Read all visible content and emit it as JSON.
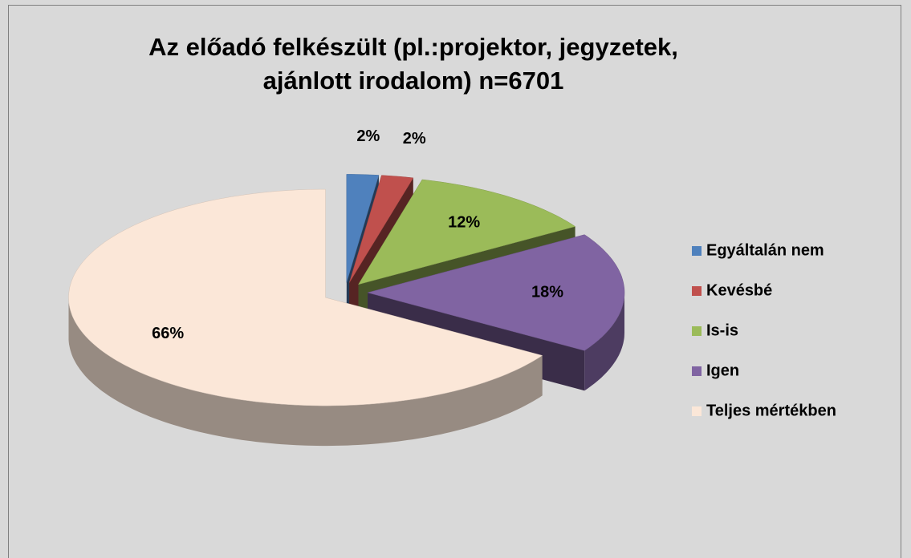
{
  "chart_data": {
    "type": "pie",
    "title": "Az előadó felkészült (pl.:projektor, jegyzetek, ajánlott irodalom) n=6701",
    "categories": [
      "Egyáltalán nem",
      "Kevésbé",
      "Is-is",
      "Igen",
      "Teljes mértékben"
    ],
    "values": [
      2,
      2,
      12,
      18,
      66
    ],
    "value_labels": [
      "2%",
      "2%",
      "12%",
      "18%",
      "66%"
    ],
    "colors": [
      "#4f81bd",
      "#c0504d",
      "#9bbb59",
      "#8064a2",
      "#fbe7d8"
    ],
    "legend": "right"
  }
}
